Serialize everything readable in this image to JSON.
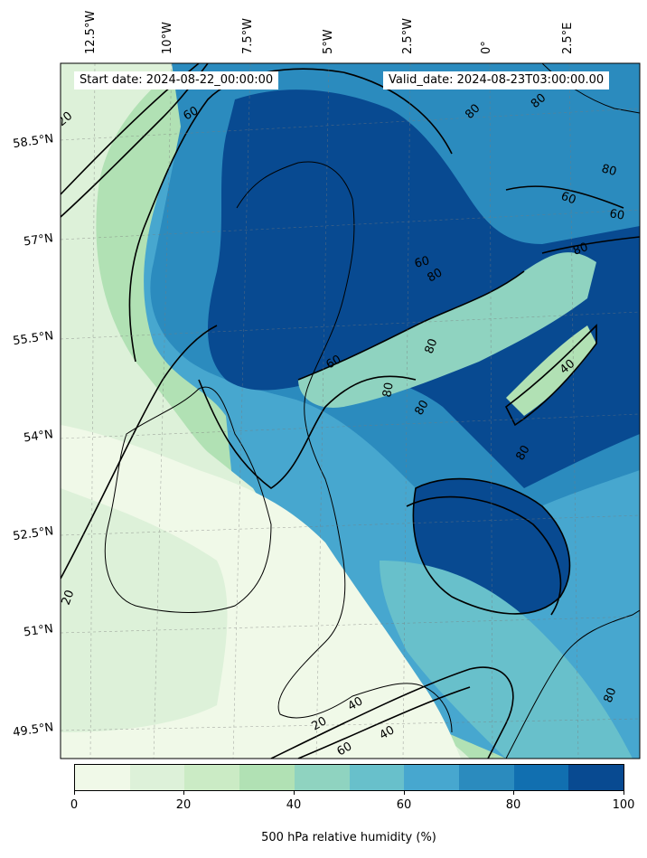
{
  "header": {
    "start_date": "Start date: 2024-08-22_00:00:00",
    "valid_date": "Valid_date: 2024-08-23T03:00:00.00"
  },
  "longitude_labels": [
    "12.5°W",
    "10°W",
    "7.5°W",
    "5°W",
    "2.5°W",
    "0°",
    "2.5°E"
  ],
  "latitude_labels": [
    "58.5°N",
    "57°N",
    "55.5°N",
    "54°N",
    "52.5°N",
    "51°N",
    "49.5°N"
  ],
  "contour_labels": [
    "20",
    "60",
    "80",
    "80",
    "60",
    "80",
    "80",
    "60",
    "80",
    "80",
    "60",
    "40",
    "80",
    "80",
    "60",
    "80",
    "20",
    "20",
    "40",
    "40",
    "60",
    "80"
  ],
  "colorbar": {
    "title": "500 hPa relative humidity (%)",
    "tick_labels": [
      "0",
      "20",
      "40",
      "60",
      "80",
      "100"
    ],
    "levels": [
      0,
      10,
      20,
      30,
      40,
      50,
      60,
      70,
      80,
      90,
      100
    ],
    "colors": [
      "#f0f9e8",
      "#ddf1d9",
      "#cbebc5",
      "#b1e1b4",
      "#8fd3c0",
      "#68c0cb",
      "#47a7cf",
      "#2b8bbe",
      "#116fb0",
      "#084a91"
    ]
  },
  "map_content": {
    "projection": "tilted conic over the British Isles",
    "field": "500 hPa relative humidity",
    "contour_levels": [
      20,
      40,
      60,
      80
    ],
    "gridlines": true
  }
}
